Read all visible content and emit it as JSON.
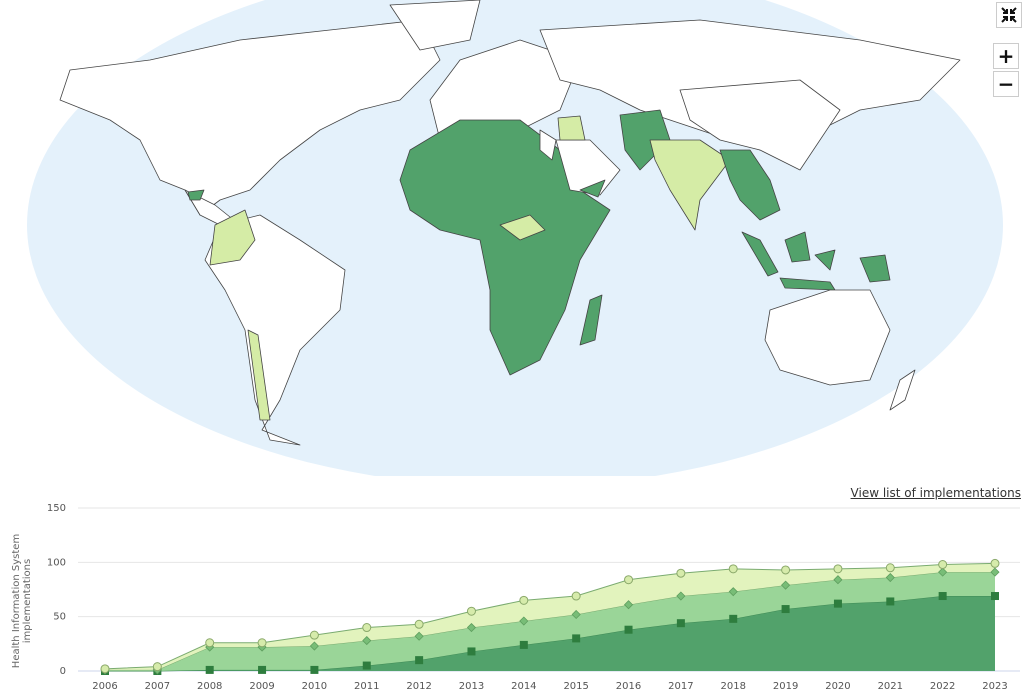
{
  "chart_data": {
    "type": "stacked-area",
    "ylabel": "Health Information System implementations",
    "categories": [
      "2006",
      "2007",
      "2008",
      "2009",
      "2010",
      "2011",
      "2012",
      "2013",
      "2014",
      "2015",
      "2016",
      "2017",
      "2018",
      "2019",
      "2020",
      "2021",
      "2022",
      "2023"
    ],
    "series": [
      {
        "color": "#52a26b",
        "marker": "square",
        "marker_color": "#2e7d3e",
        "values": [
          0,
          0,
          1,
          1,
          1,
          5,
          10,
          18,
          24,
          30,
          38,
          44,
          48,
          57,
          62,
          64,
          69,
          69
        ]
      },
      {
        "color": "#9ad598",
        "marker": "diamond",
        "marker_color": "#78bd77",
        "values": [
          1,
          1,
          21,
          21,
          22,
          23,
          22,
          22,
          22,
          22,
          23,
          25,
          25,
          22,
          22,
          22,
          22,
          22
        ]
      },
      {
        "color": "#e2f3bd",
        "marker": "circle",
        "marker_color": "#d6ebab",
        "values": [
          1,
          3,
          4,
          4,
          10,
          12,
          11,
          15,
          19,
          17,
          23,
          21,
          21,
          14,
          10,
          9,
          7,
          8
        ]
      }
    ],
    "ylim": [
      0,
      150
    ],
    "yticks": [
      0,
      50,
      100,
      150
    ],
    "grid": true
  },
  "link": "View list of implementations",
  "map_controls": {
    "zoom_in": "+",
    "zoom_out": "−"
  }
}
